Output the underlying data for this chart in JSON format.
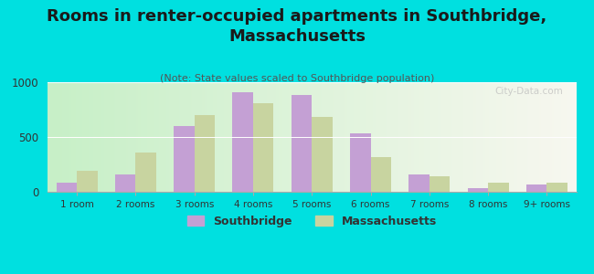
{
  "title": "Rooms in renter-occupied apartments in Southbridge,\nMassachusetts",
  "subtitle": "(Note: State values scaled to Southbridge population)",
  "categories": [
    "1 room",
    "2 rooms",
    "3 rooms",
    "4 rooms",
    "5 rooms",
    "6 rooms",
    "7 rooms",
    "8 rooms",
    "9+ rooms"
  ],
  "southbridge": [
    80,
    160,
    600,
    910,
    880,
    530,
    155,
    30,
    70
  ],
  "massachusetts": [
    195,
    360,
    700,
    810,
    680,
    320,
    145,
    80,
    85
  ],
  "southbridge_color": "#c4a0d4",
  "massachusetts_color": "#c8d4a0",
  "background_color": "#00e0e0",
  "ylim": [
    0,
    1000
  ],
  "yticks": [
    0,
    500,
    1000
  ],
  "legend_southbridge": "Southbridge",
  "legend_massachusetts": "Massachusetts",
  "watermark": "City-Data.com",
  "title_fontsize": 13,
  "subtitle_fontsize": 8,
  "bar_width": 0.35
}
